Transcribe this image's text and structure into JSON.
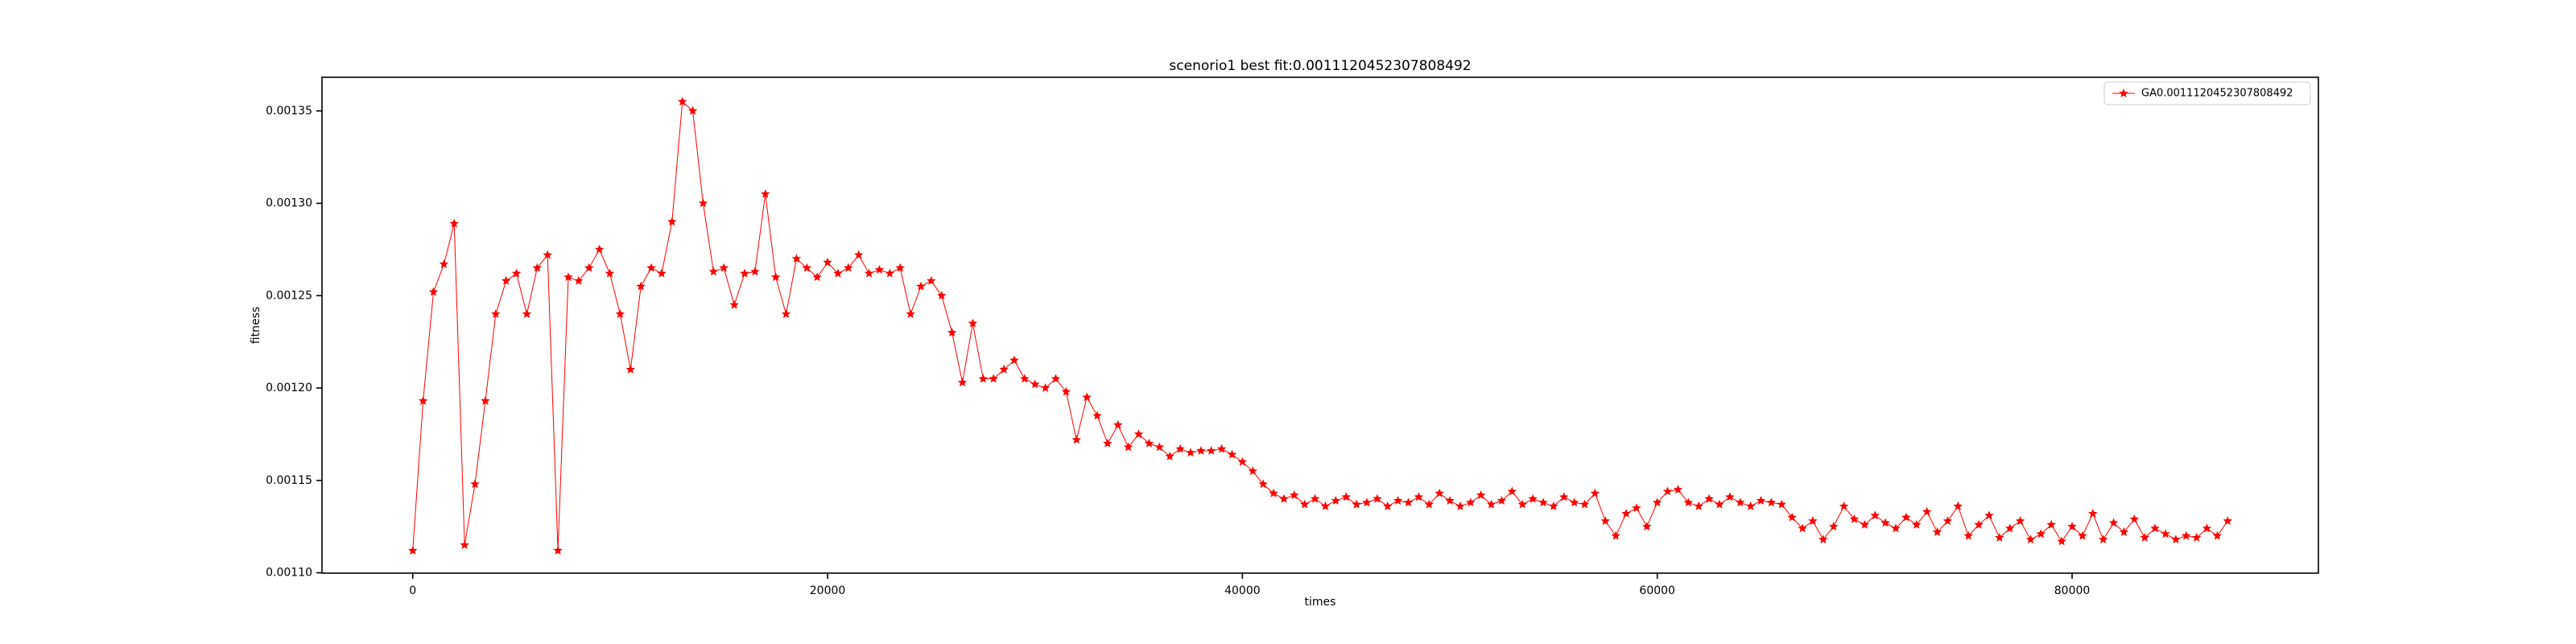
{
  "chart_data": {
    "type": "line",
    "title": "scenorio1 best fit:0.0011120452307808492",
    "x_label": "times",
    "y_label": "fitness",
    "x": [
      0,
      500,
      1000,
      1500,
      2000,
      2500,
      3000,
      3500,
      4000,
      4500,
      5000,
      5500,
      6000,
      6500,
      7000,
      7500,
      8000,
      8500,
      9000,
      9500,
      10000,
      10500,
      11000,
      11500,
      12000,
      12500,
      13000,
      13500,
      14000,
      14500,
      15000,
      15500,
      16000,
      16500,
      17000,
      17500,
      18000,
      18500,
      19000,
      19500,
      20000,
      20500,
      21000,
      21500,
      22000,
      22500,
      23000,
      23500,
      24000,
      24500,
      25000,
      25500,
      26000,
      26500,
      27000,
      27500,
      28000,
      28500,
      29000,
      29500,
      30000,
      30500,
      31000,
      31500,
      32000,
      32500,
      33000,
      33500,
      34000,
      34500,
      35000,
      35500,
      36000,
      36500,
      37000,
      37500,
      38000,
      38500,
      39000,
      39500,
      40000,
      40500,
      41000,
      41500,
      42000,
      42500,
      43000,
      43500,
      44000,
      44500,
      45000,
      45500,
      46000,
      46500,
      47000,
      47500,
      48000,
      48500,
      49000,
      49500,
      50000,
      50500,
      51000,
      51500,
      52000,
      52500,
      53000,
      53500,
      54000,
      54500,
      55000,
      55500,
      56000,
      56500,
      57000,
      57500,
      58000,
      58500,
      59000,
      59500,
      60000,
      60500,
      61000,
      61500,
      62000,
      62500,
      63000,
      63500,
      64000,
      64500,
      65000,
      65500,
      66000,
      66500,
      67000,
      67500,
      68000,
      68500,
      69000,
      69500,
      70000,
      70500,
      71000,
      71500,
      72000,
      72500,
      73000,
      73500,
      74000,
      74500,
      75000,
      75500,
      76000,
      76500,
      77000,
      77500,
      78000,
      78500,
      79000,
      79500,
      80000,
      80500,
      81000,
      81500,
      82000,
      82500,
      83000,
      83500,
      84000,
      84500,
      85000,
      85500,
      86000,
      86500,
      87000,
      87500
    ],
    "series": [
      {
        "name": "GA0.0011120452307808492",
        "color": "#ff0000",
        "values": [
          0.001112,
          0.001193,
          0.001252,
          0.001267,
          0.001289,
          0.001115,
          0.001148,
          0.001193,
          0.00124,
          0.001258,
          0.001262,
          0.00124,
          0.001265,
          0.001272,
          0.001112,
          0.00126,
          0.001258,
          0.001265,
          0.001275,
          0.001262,
          0.00124,
          0.00121,
          0.001255,
          0.001265,
          0.001262,
          0.00129,
          0.001355,
          0.00135,
          0.0013,
          0.001263,
          0.001265,
          0.001245,
          0.001262,
          0.001263,
          0.001305,
          0.00126,
          0.00124,
          0.00127,
          0.001265,
          0.00126,
          0.001268,
          0.001262,
          0.001265,
          0.001272,
          0.001262,
          0.001264,
          0.001262,
          0.001265,
          0.00124,
          0.001255,
          0.001258,
          0.00125,
          0.00123,
          0.001203,
          0.001235,
          0.001205,
          0.001205,
          0.00121,
          0.001215,
          0.001205,
          0.001202,
          0.0012,
          0.001205,
          0.001198,
          0.001172,
          0.001195,
          0.001185,
          0.00117,
          0.00118,
          0.001168,
          0.001175,
          0.00117,
          0.001168,
          0.001163,
          0.001167,
          0.001165,
          0.001166,
          0.001166,
          0.001167,
          0.001164,
          0.00116,
          0.001155,
          0.001148,
          0.001143,
          0.00114,
          0.001142,
          0.001137,
          0.00114,
          0.001136,
          0.001139,
          0.001141,
          0.001137,
          0.001138,
          0.00114,
          0.001136,
          0.001139,
          0.001138,
          0.001141,
          0.001137,
          0.001143,
          0.001139,
          0.001136,
          0.001138,
          0.001142,
          0.001137,
          0.001139,
          0.001144,
          0.001137,
          0.00114,
          0.001138,
          0.001136,
          0.001141,
          0.001138,
          0.001137,
          0.001143,
          0.001128,
          0.00112,
          0.001132,
          0.001135,
          0.001125,
          0.001138,
          0.001144,
          0.001145,
          0.001138,
          0.001136,
          0.00114,
          0.001137,
          0.001141,
          0.001138,
          0.001136,
          0.001139,
          0.001138,
          0.001137,
          0.00113,
          0.001124,
          0.001128,
          0.001118,
          0.001125,
          0.001136,
          0.001129,
          0.001126,
          0.001131,
          0.001127,
          0.001124,
          0.00113,
          0.001126,
          0.001133,
          0.001122,
          0.001128,
          0.001136,
          0.00112,
          0.001126,
          0.001131,
          0.001119,
          0.001124,
          0.001128,
          0.001118,
          0.001121,
          0.001126,
          0.001117,
          0.001125,
          0.00112,
          0.001132,
          0.001118,
          0.001127,
          0.001122,
          0.001129,
          0.001119,
          0.001124,
          0.001121,
          0.001118,
          0.00112,
          0.001119,
          0.001124,
          0.00112,
          0.001128
        ]
      }
    ],
    "xlim": [
      -4375,
      91875
    ],
    "xticks": [
      0,
      20000,
      40000,
      60000,
      80000
    ],
    "ylim": [
      0.0010998,
      0.0013682
    ],
    "yticks": [
      {
        "value": 0.0011,
        "label": "0.00110"
      },
      {
        "value": 0.00115,
        "label": "0.00115"
      },
      {
        "value": 0.0012,
        "label": "0.00120"
      },
      {
        "value": 0.00125,
        "label": "0.00125"
      },
      {
        "value": 0.0013,
        "label": "0.00130"
      },
      {
        "value": 0.00135,
        "label": "0.00135"
      }
    ],
    "legend": "upper right",
    "grid": false
  }
}
